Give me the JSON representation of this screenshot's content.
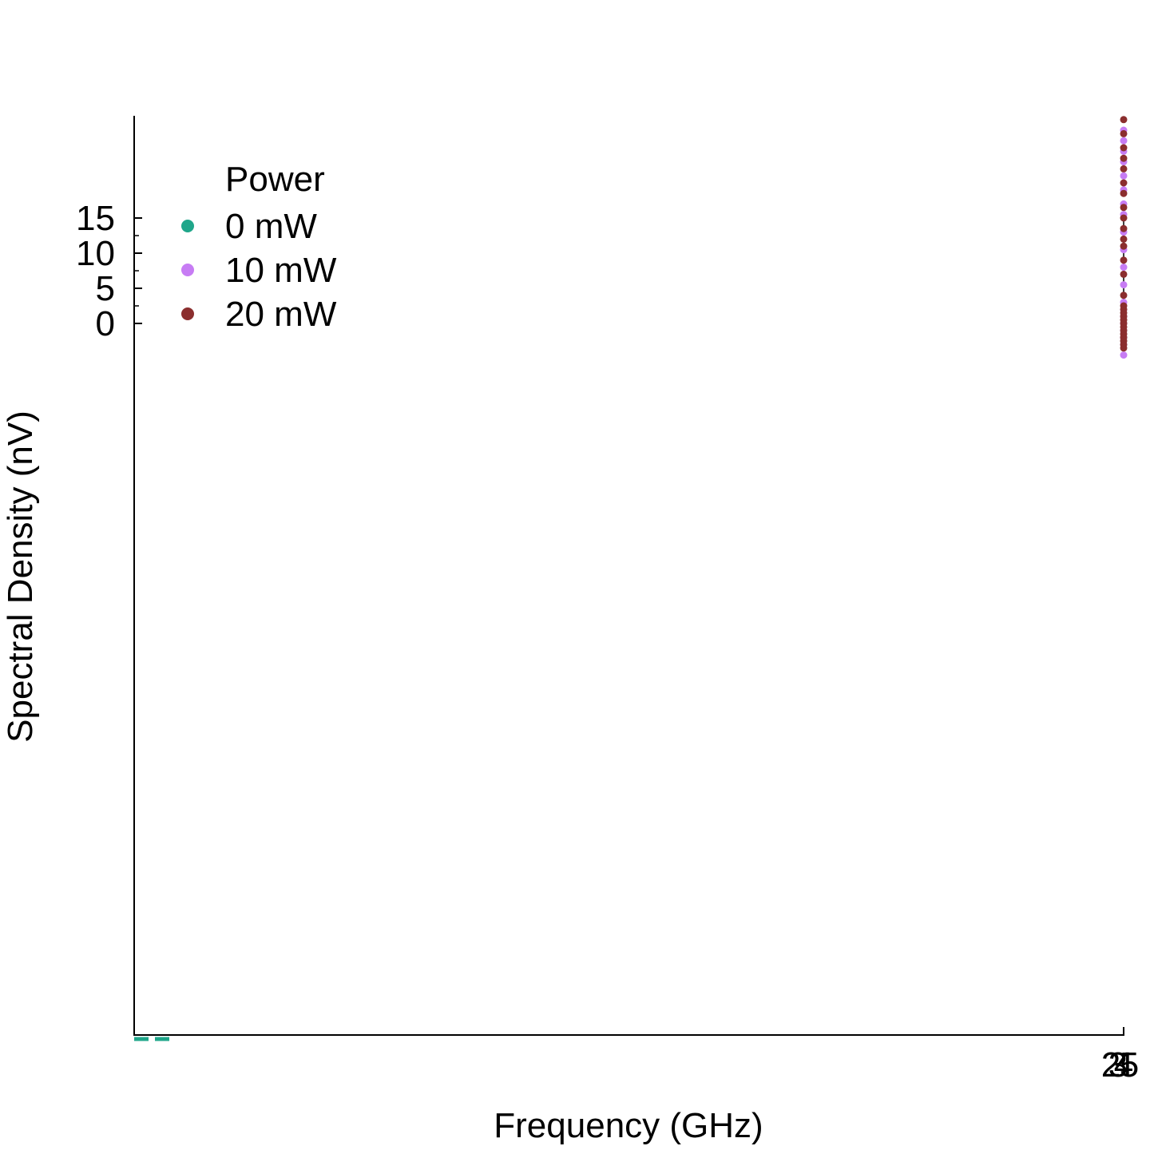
{
  "chart_data": {
    "type": "scatter",
    "xlabel": "Frequency (GHz)",
    "ylabel": "Spectral Density (nV)",
    "x_tick_labels": [
      "2",
      "3",
      "4",
      "5"
    ],
    "y_ticks": [
      0,
      5,
      10,
      15
    ],
    "y_tick_labels": [
      "0",
      "5",
      "10",
      "15"
    ],
    "grid": false,
    "legend": {
      "title": "Power",
      "placement": "top-left",
      "entries": [
        {
          "label": "0 mW",
          "color": "#1fa68a"
        },
        {
          "label": "10 mW",
          "color": "#c77cf4"
        },
        {
          "label": "20 mW",
          "color": "#8b2e2e"
        }
      ]
    },
    "series": [
      {
        "name": "0 mW",
        "color": "#1fa68a",
        "style": "dashed-line",
        "y": [
          -100.0,
          -100.0,
          -100.0
        ]
      },
      {
        "name": "10 mW",
        "color": "#c77cf4",
        "y": [
          27.5,
          26.0,
          24.5,
          23.0,
          21.0,
          19.0,
          17.0,
          15.5,
          13.0,
          10.5,
          8.0,
          5.5,
          3.0,
          2.0,
          1.0,
          0.0,
          -1.0,
          -2.0,
          -3.0,
          -4.5
        ]
      },
      {
        "name": "20 mW",
        "color": "#8b2e2e",
        "y": [
          29.0,
          27.0,
          25.0,
          23.5,
          22.0,
          20.0,
          18.5,
          16.5,
          15.0,
          13.5,
          12.0,
          11.0,
          9.0,
          7.0,
          4.0,
          2.5,
          2.0,
          1.5,
          1.0,
          0.5,
          0.0,
          -0.5,
          -1.0,
          -1.5,
          -2.0,
          -2.5,
          -3.0,
          -3.5
        ]
      }
    ]
  }
}
